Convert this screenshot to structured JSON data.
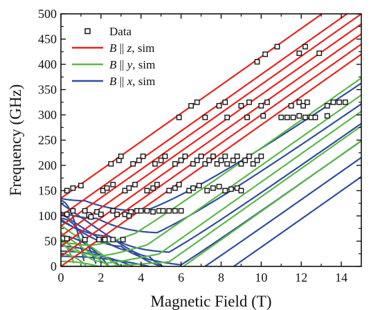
{
  "chart_data": {
    "type": "line",
    "title": "",
    "xlabel": "Magnetic Field (T)",
    "ylabel": "Frequency (GHz)",
    "xlim": [
      0,
      15
    ],
    "ylim": [
      0,
      500
    ],
    "x_ticks": [
      0,
      2,
      4,
      6,
      8,
      10,
      12,
      14
    ],
    "y_ticks": [
      0,
      50,
      100,
      150,
      200,
      250,
      300,
      350,
      400,
      450,
      500
    ],
    "x_tick_labels": [
      "0",
      "2",
      "4",
      "6",
      "8",
      "10",
      "12",
      "14"
    ],
    "y_tick_labels": [
      "0",
      "50",
      "100",
      "150",
      "200",
      "250",
      "300",
      "350",
      "400",
      "450",
      "500"
    ],
    "grid": false,
    "legend_position": "top-left",
    "legend": [
      {
        "symbol": "open-square",
        "prefix": "Data",
        "field": "",
        "suffix": "",
        "color": "#111111"
      },
      {
        "symbol": "line",
        "prefix": "B",
        "field": " || z",
        "suffix": ", sim",
        "color": "#e8231e"
      },
      {
        "symbol": "line",
        "prefix": "B",
        "field": " || y",
        "suffix": ", sim",
        "color": "#5cb848"
      },
      {
        "symbol": "line",
        "prefix": "B",
        "field": " || x",
        "suffix": ", sim",
        "color": "#2e4d9e"
      }
    ],
    "series": [
      {
        "orientation": "z",
        "color": "#e8231e",
        "slope": 28,
        "intercepts": [
          0,
          20,
          40,
          60,
          80,
          100,
          135
        ]
      },
      {
        "orientation": "y",
        "color": "#5cb848",
        "slope": 28,
        "freeze_fields": [
          0.7,
          1.3,
          1.9,
          2.4,
          2.9
        ],
        "gaps": [
          45,
          25,
          10,
          0,
          0
        ],
        "offsets": [
          -30,
          -45,
          -60,
          -75,
          -90
        ]
      },
      {
        "orientation": "x",
        "color": "#2e4d9e",
        "slope": 28,
        "freeze_fields": [
          1.2,
          1.8,
          2.4,
          3.0,
          3.6,
          4.4
        ],
        "gaps": [
          130,
          95,
          60,
          40,
          30,
          20
        ],
        "offsets": [
          -45,
          -60,
          -75,
          -90,
          -105,
          -120
        ]
      },
      {
        "name": "Data",
        "marker": "open-square",
        "points": [
          [
            0.3,
            150
          ],
          [
            0.6,
            155
          ],
          [
            1.0,
            160
          ],
          [
            2.1,
            150
          ],
          [
            2.3,
            155
          ],
          [
            2.6,
            162
          ],
          [
            3.2,
            150
          ],
          [
            3.4,
            155
          ],
          [
            3.7,
            162
          ],
          [
            4.3,
            150
          ],
          [
            4.6,
            155
          ],
          [
            4.8,
            162
          ],
          [
            5.4,
            150
          ],
          [
            5.7,
            155
          ],
          [
            5.9,
            162
          ],
          [
            6.4,
            150
          ],
          [
            6.6,
            155
          ],
          [
            6.9,
            160
          ],
          [
            7.3,
            150
          ],
          [
            7.6,
            155
          ],
          [
            7.9,
            158
          ],
          [
            8.2,
            150
          ],
          [
            8.5,
            153
          ],
          [
            8.8,
            155
          ],
          [
            9.0,
            150
          ],
          [
            0.3,
            103
          ],
          [
            0.6,
            110
          ],
          [
            1.2,
            110
          ],
          [
            1.4,
            102
          ],
          [
            1.8,
            108
          ],
          [
            2.0,
            103
          ],
          [
            2.6,
            110
          ],
          [
            2.8,
            103
          ],
          [
            3.2,
            103
          ],
          [
            3.5,
            108
          ],
          [
            3.8,
            110
          ],
          [
            4.0,
            110
          ],
          [
            4.3,
            110
          ],
          [
            4.6,
            108
          ],
          [
            4.9,
            110
          ],
          [
            5.1,
            110
          ],
          [
            5.4,
            110
          ],
          [
            5.7,
            110
          ],
          [
            6.0,
            110
          ],
          [
            1.5,
            98
          ],
          [
            3.4,
            100
          ],
          [
            0.3,
            55
          ],
          [
            1.2,
            53
          ],
          [
            1.9,
            53
          ],
          [
            2.2,
            53
          ],
          [
            2.6,
            53
          ],
          [
            3.1,
            53
          ],
          [
            2.5,
            203
          ],
          [
            2.9,
            210
          ],
          [
            3.0,
            218
          ],
          [
            3.6,
            203
          ],
          [
            3.9,
            210
          ],
          [
            4.1,
            218
          ],
          [
            4.7,
            203
          ],
          [
            5.0,
            210
          ],
          [
            5.2,
            218
          ],
          [
            5.7,
            203
          ],
          [
            6.0,
            210
          ],
          [
            6.2,
            218
          ],
          [
            6.6,
            203
          ],
          [
            6.8,
            210
          ],
          [
            7.0,
            218
          ],
          [
            7.2,
            203
          ],
          [
            7.4,
            210
          ],
          [
            7.6,
            218
          ],
          [
            7.8,
            203
          ],
          [
            8.0,
            210
          ],
          [
            8.2,
            218
          ],
          [
            8.3,
            203
          ],
          [
            8.6,
            210
          ],
          [
            8.8,
            218
          ],
          [
            9.0,
            203
          ],
          [
            9.2,
            210
          ],
          [
            9.4,
            218
          ],
          [
            9.6,
            203
          ],
          [
            9.8,
            210
          ],
          [
            10.0,
            218
          ],
          [
            5.9,
            295
          ],
          [
            7.2,
            295
          ],
          [
            8.3,
            295
          ],
          [
            9.3,
            295
          ],
          [
            10.1,
            298
          ],
          [
            11.0,
            295
          ],
          [
            11.3,
            295
          ],
          [
            11.6,
            295
          ],
          [
            11.9,
            298
          ],
          [
            12.2,
            295
          ],
          [
            12.5,
            295
          ],
          [
            12.7,
            295
          ],
          [
            13.3,
            298
          ],
          [
            6.5,
            318
          ],
          [
            6.8,
            325
          ],
          [
            7.9,
            318
          ],
          [
            8.2,
            325
          ],
          [
            9.0,
            318
          ],
          [
            9.4,
            325
          ],
          [
            10.0,
            318
          ],
          [
            10.3,
            325
          ],
          [
            11.5,
            318
          ],
          [
            11.9,
            325
          ],
          [
            12.1,
            318
          ],
          [
            12.3,
            325
          ],
          [
            13.3,
            318
          ],
          [
            13.6,
            325
          ],
          [
            13.9,
            325
          ],
          [
            14.2,
            325
          ],
          [
            9.8,
            405
          ],
          [
            10.2,
            420
          ],
          [
            10.8,
            435
          ],
          [
            11.9,
            422
          ],
          [
            12.2,
            435
          ],
          [
            12.9,
            422
          ]
        ]
      }
    ]
  }
}
